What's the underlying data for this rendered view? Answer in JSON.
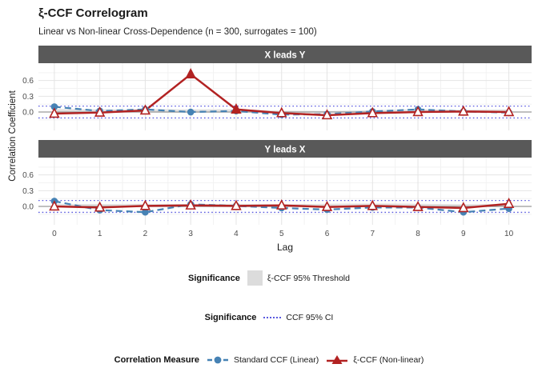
{
  "title": "ξ-CCF Correlogram",
  "subtitle": "Linear vs Non-linear Cross-Dependence (n = 300, surrogates = 100)",
  "colors": {
    "linear": "#4682B4",
    "nonlinear": "#B22222",
    "ci_line": "#5A5ADF",
    "threshold_fill": "#DCDCDC",
    "strip_bg": "#595959",
    "strip_text": "#FFFFFF",
    "grid_major": "#E4E4E4",
    "grid_minor": "#F2F2F2",
    "zero_line": "#9A9A9A",
    "axis_text": "#4D4D4D"
  },
  "chart_data": {
    "type": "line",
    "x": [
      0,
      1,
      2,
      3,
      4,
      5,
      6,
      7,
      8,
      9,
      10
    ],
    "xlabel": "Lag",
    "ylabel": "Correlation Coefficient",
    "yticks": [
      0.0,
      0.3,
      0.6
    ],
    "yticks_minor": [
      -0.15,
      0.15,
      0.45,
      0.75
    ],
    "ylim": [
      -0.35,
      0.93
    ],
    "xlim": [
      -0.35,
      10.5
    ],
    "ci_level": 0.113,
    "grid": true,
    "legend_position": "bottom",
    "panels": [
      {
        "label": "X leads Y",
        "series": [
          {
            "name": "Standard CCF (Linear)",
            "values": [
              0.1,
              0.02,
              0.05,
              0.0,
              0.02,
              -0.05,
              -0.04,
              0.01,
              0.05,
              0.01,
              -0.01
            ]
          },
          {
            "name": "ξ-CCF (Non-linear)",
            "values": [
              -0.03,
              -0.01,
              0.03,
              0.72,
              0.05,
              -0.02,
              -0.06,
              -0.02,
              0.0,
              0.01,
              0.0
            ],
            "significant": [
              false,
              false,
              false,
              true,
              true,
              false,
              false,
              false,
              false,
              false,
              false
            ]
          }
        ],
        "threshold_upper": [
          0.055,
          0.05,
          0.055,
          0.05,
          0.055,
          0.025,
          0.02,
          0.035,
          0.055,
          0.045,
          0.05
        ],
        "threshold_lower": [
          -0.015,
          -0.01,
          -0.01,
          -0.015,
          -0.01,
          -0.01,
          -0.01,
          -0.01,
          -0.015,
          -0.01,
          -0.01
        ]
      },
      {
        "label": "Y leads X",
        "series": [
          {
            "name": "Standard CCF (Linear)",
            "values": [
              0.1,
              -0.07,
              -0.11,
              0.04,
              0.01,
              -0.03,
              -0.06,
              -0.02,
              -0.02,
              -0.11,
              -0.04
            ]
          },
          {
            "name": "ξ-CCF (Non-linear)",
            "values": [
              0.0,
              -0.02,
              0.01,
              0.02,
              0.01,
              0.02,
              -0.01,
              0.01,
              -0.01,
              -0.03,
              0.05
            ],
            "significant": [
              false,
              false,
              false,
              false,
              false,
              false,
              false,
              false,
              false,
              false,
              false
            ]
          }
        ],
        "threshold_upper": [
          0.05,
          0.045,
          0.05,
          0.045,
          0.05,
          0.04,
          0.05,
          0.055,
          0.05,
          0.04,
          0.05
        ],
        "threshold_lower": [
          -0.015,
          -0.01,
          -0.015,
          -0.01,
          -0.015,
          -0.01,
          -0.01,
          -0.015,
          -0.01,
          -0.01,
          -0.015
        ]
      }
    ]
  },
  "legends": [
    {
      "title": "Significance",
      "items": [
        {
          "label": "ξ-CCF 95% Threshold"
        }
      ]
    },
    {
      "title": "Significance",
      "items": [
        {
          "label": "CCF 95% CI"
        }
      ]
    },
    {
      "title": "Correlation Measure",
      "items": [
        {
          "label": "Standard CCF (Linear)"
        },
        {
          "label": "ξ-CCF (Non-linear)"
        }
      ]
    }
  ]
}
